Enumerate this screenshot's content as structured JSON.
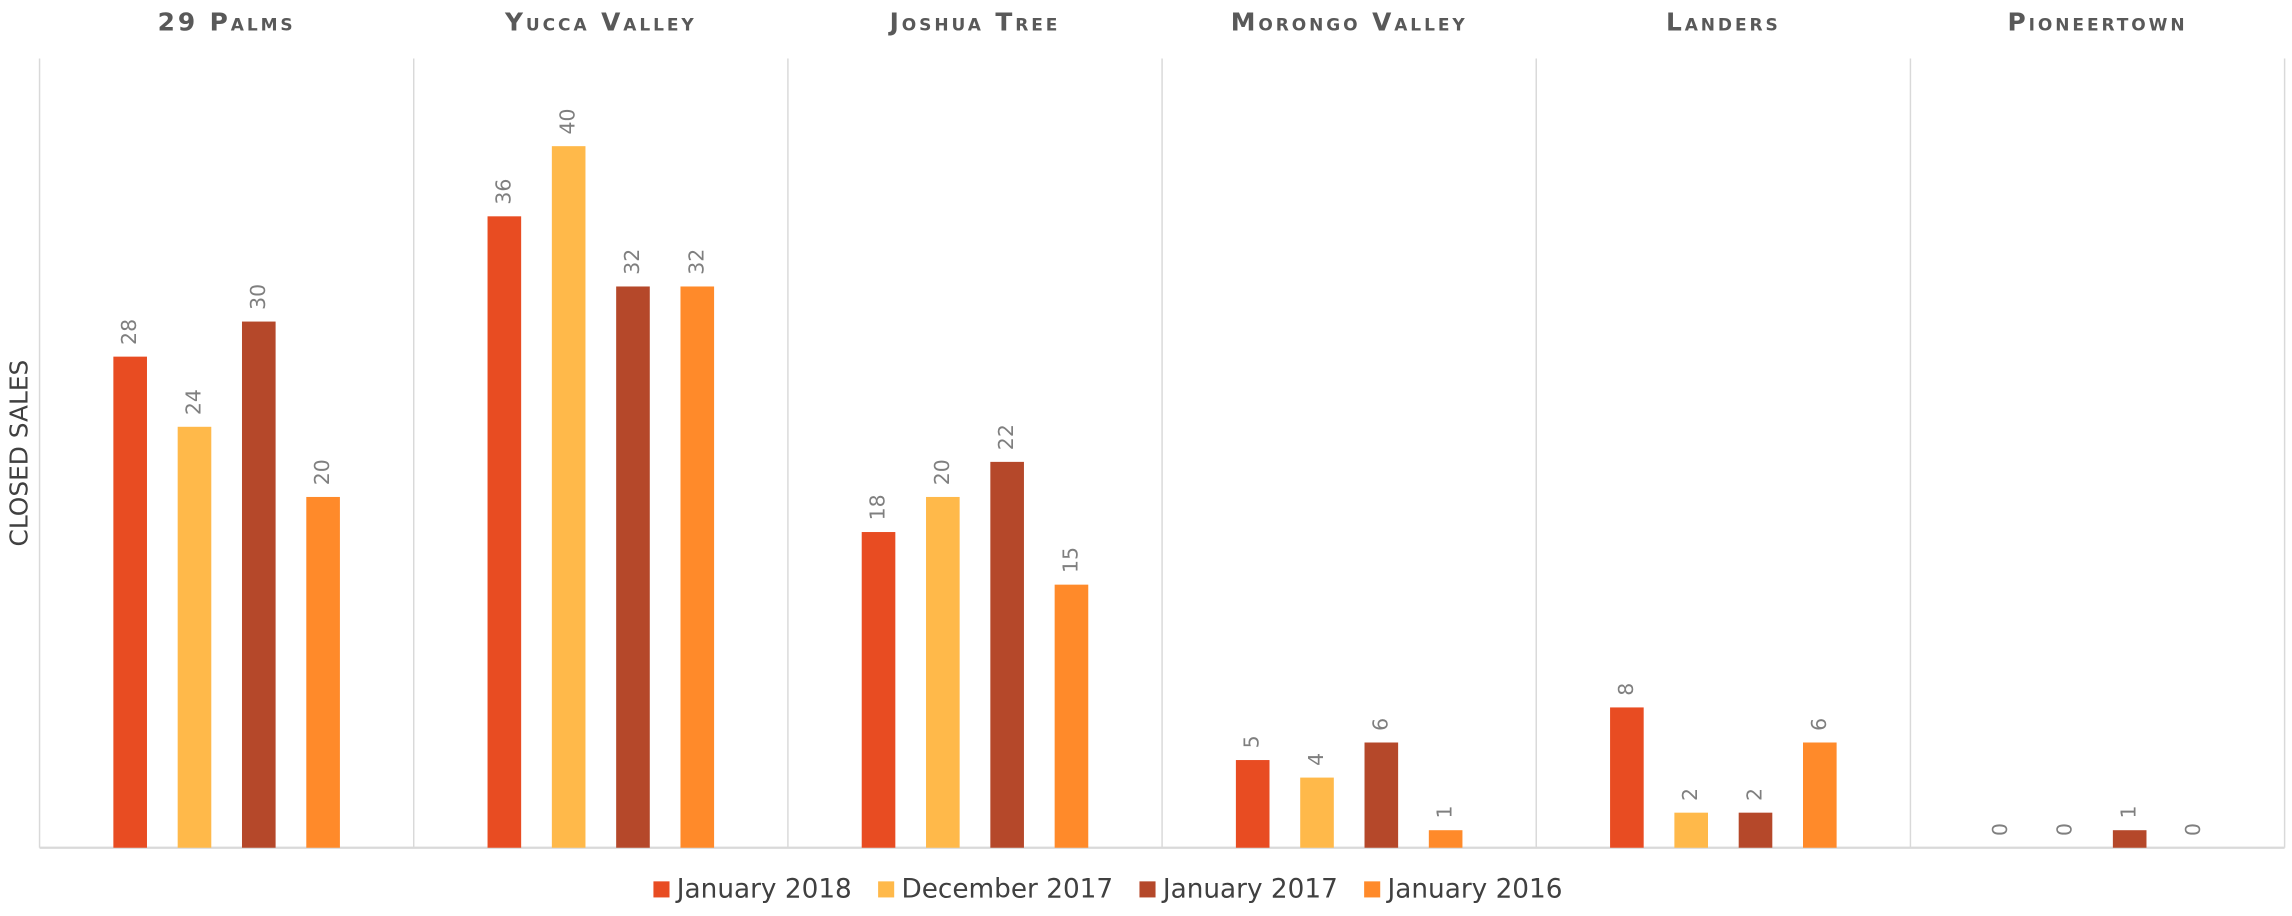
{
  "chart_data": {
    "type": "bar",
    "ylabel": "CLOSED SALES",
    "categories": [
      "29 Palms",
      "Yucca Valley",
      "Joshua Tree",
      "Morongo Valley",
      "Landers",
      "Pioneertown"
    ],
    "series": [
      {
        "name": "January 2018",
        "color": "#e84c22",
        "values": [
          28,
          36,
          18,
          5,
          8,
          0
        ]
      },
      {
        "name": "December 2017",
        "color": "#ffb94a",
        "values": [
          24,
          40,
          20,
          4,
          2,
          0
        ]
      },
      {
        "name": "January 2017",
        "color": "#b5482a",
        "values": [
          30,
          32,
          22,
          6,
          2,
          1
        ]
      },
      {
        "name": "January 2016",
        "color": "#ff8a2a",
        "values": [
          20,
          32,
          15,
          1,
          6,
          0
        ]
      }
    ],
    "ylim": [
      0,
      45
    ],
    "legend": "bottom"
  }
}
